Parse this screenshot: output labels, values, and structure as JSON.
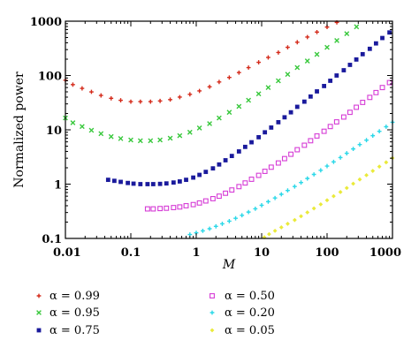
{
  "chart_data": {
    "type": "scatter",
    "title": "",
    "xlabel": "M",
    "ylabel": "Normalized power",
    "xscale": "log",
    "yscale": "log",
    "xlim": [
      0.01,
      1000
    ],
    "ylim": [
      0.1,
      1000
    ],
    "x_ticks": [
      {
        "value": 0.01,
        "label": "0.01"
      },
      {
        "value": 0.1,
        "label": "0.1"
      },
      {
        "value": 1,
        "label": "1"
      },
      {
        "value": 10,
        "label": "10"
      },
      {
        "value": 100,
        "label": "100"
      },
      {
        "value": 1000,
        "label": "1000"
      }
    ],
    "y_ticks": [
      {
        "value": 0.1,
        "label": "0.1"
      },
      {
        "value": 1,
        "label": "1"
      },
      {
        "value": 10,
        "label": "10"
      },
      {
        "value": 100,
        "label": "100"
      },
      {
        "value": 1000,
        "label": "1000"
      }
    ],
    "legend_placement": "bottom",
    "series": [
      {
        "name": "α = 0.99",
        "color": "#d42a1a",
        "marker": "plus",
        "x": [
          0.01,
          0.013,
          0.018,
          0.025,
          0.035,
          0.05,
          0.07,
          0.1,
          0.14,
          0.2,
          0.28,
          0.4,
          0.56,
          0.8,
          1.12,
          1.6,
          2.24,
          3.2,
          4.5,
          6.3,
          9,
          12.6,
          18,
          25,
          35,
          50,
          70,
          100,
          141,
          200
        ],
        "y": [
          82,
          68,
          58,
          50,
          43,
          38,
          35,
          33,
          33,
          33,
          34,
          36,
          40,
          45,
          52,
          62,
          76,
          92,
          113,
          140,
          175,
          215,
          265,
          330,
          410,
          510,
          630,
          780,
          950,
          1150
        ]
      },
      {
        "name": "α = 0.95",
        "color": "#38c83c",
        "marker": "x",
        "x": [
          0.01,
          0.013,
          0.018,
          0.025,
          0.035,
          0.05,
          0.07,
          0.1,
          0.14,
          0.2,
          0.28,
          0.4,
          0.56,
          0.8,
          1.12,
          1.6,
          2.24,
          3.2,
          4.5,
          6.3,
          9,
          12.6,
          18,
          25,
          35,
          50,
          70,
          100,
          141,
          200,
          282,
          400
        ],
        "y": [
          16.5,
          13.5,
          11.5,
          9.8,
          8.5,
          7.5,
          6.9,
          6.5,
          6.3,
          6.3,
          6.5,
          7,
          7.8,
          9,
          10.8,
          13,
          16.5,
          21,
          27,
          35,
          46,
          60,
          80,
          105,
          140,
          185,
          245,
          330,
          440,
          590,
          790,
          1050
        ]
      },
      {
        "name": "α = 0.75",
        "color": "#1a1a9c",
        "marker": "square",
        "x": [
          0.045,
          0.056,
          0.07,
          0.09,
          0.11,
          0.14,
          0.18,
          0.22,
          0.28,
          0.35,
          0.45,
          0.56,
          0.7,
          0.9,
          1.12,
          1.4,
          1.8,
          2.24,
          2.8,
          3.5,
          4.5,
          5.6,
          7,
          9,
          11.2,
          14,
          18,
          22.4,
          28,
          35,
          45,
          56,
          70,
          90,
          112,
          140,
          180,
          224,
          280,
          350,
          450,
          560,
          700,
          900
        ],
        "y": [
          1.2,
          1.15,
          1.1,
          1.05,
          1.02,
          1,
          1,
          1,
          1.01,
          1.03,
          1.07,
          1.12,
          1.2,
          1.32,
          1.48,
          1.68,
          1.95,
          2.3,
          2.75,
          3.3,
          4,
          4.85,
          5.9,
          7.3,
          9,
          11,
          13.8,
          17,
          21,
          26.5,
          33,
          41,
          51,
          64,
          80,
          100,
          125,
          157,
          197,
          247,
          310,
          390,
          490,
          620
        ]
      },
      {
        "name": "α = 0.50",
        "color": "#d63cd6",
        "marker": "open-square",
        "x": [
          0.18,
          0.22,
          0.28,
          0.35,
          0.45,
          0.56,
          0.7,
          0.9,
          1.12,
          1.4,
          1.8,
          2.24,
          2.8,
          3.5,
          4.5,
          5.6,
          7,
          9,
          11.2,
          14,
          18,
          22.4,
          28,
          35,
          45,
          56,
          70,
          90,
          112,
          140,
          180,
          224,
          280,
          350,
          450,
          560,
          700,
          900
        ],
        "y": [
          0.35,
          0.35,
          0.355,
          0.36,
          0.37,
          0.38,
          0.4,
          0.42,
          0.45,
          0.49,
          0.54,
          0.6,
          0.68,
          0.78,
          0.9,
          1.05,
          1.23,
          1.45,
          1.72,
          2.05,
          2.45,
          2.95,
          3.55,
          4.3,
          5.2,
          6.3,
          7.7,
          9.4,
          11.5,
          14,
          17.2,
          21,
          26,
          32,
          39.5,
          48.5,
          60,
          74
        ]
      },
      {
        "name": "α = 0.20",
        "color": "#2ad8e8",
        "marker": "plus",
        "x": [
          0.8,
          1,
          1.26,
          1.6,
          2,
          2.5,
          3.2,
          4,
          5,
          6.3,
          8,
          10,
          12.6,
          16,
          20,
          25,
          32,
          40,
          50,
          63,
          80,
          100,
          126,
          160,
          200,
          251,
          316,
          400,
          500,
          630,
          800,
          1000
        ],
        "y": [
          0.118,
          0.127,
          0.138,
          0.151,
          0.167,
          0.186,
          0.208,
          0.235,
          0.267,
          0.306,
          0.352,
          0.408,
          0.475,
          0.555,
          0.65,
          0.765,
          0.905,
          1.07,
          1.27,
          1.51,
          1.8,
          2.15,
          2.57,
          3.08,
          3.7,
          4.45,
          5.35,
          6.45,
          7.8,
          9.4,
          11.4,
          13.8
        ]
      },
      {
        "name": "α = 0.05",
        "color": "#eaea3a",
        "marker": "diamond",
        "x": [
          11,
          13,
          16,
          20,
          25,
          32,
          40,
          50,
          63,
          80,
          100,
          126,
          160,
          200,
          251,
          316,
          400,
          500,
          630,
          800,
          1000
        ],
        "y": [
          0.105,
          0.12,
          0.138,
          0.16,
          0.186,
          0.218,
          0.256,
          0.302,
          0.357,
          0.425,
          0.505,
          0.6,
          0.715,
          0.85,
          1.02,
          1.22,
          1.46,
          1.75,
          2.1,
          2.52,
          3.02
        ]
      }
    ]
  }
}
